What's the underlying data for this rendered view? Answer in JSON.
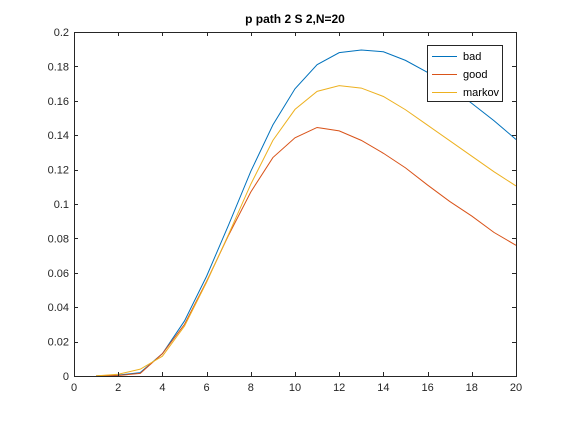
{
  "chart_data": {
    "type": "line",
    "title": "p path 2 S 2,N=20",
    "xlabel": "",
    "ylabel": "",
    "xlim": [
      0,
      20
    ],
    "ylim": [
      0,
      0.2
    ],
    "xticks": [
      0,
      2,
      4,
      6,
      8,
      10,
      12,
      14,
      16,
      18,
      20
    ],
    "yticks": [
      0,
      0.02,
      0.04,
      0.06,
      0.08,
      0.1,
      0.12,
      0.14,
      0.16,
      0.18,
      0.2
    ],
    "xtick_labels": [
      "0",
      "2",
      "4",
      "6",
      "8",
      "10",
      "12",
      "14",
      "16",
      "18",
      "20"
    ],
    "ytick_labels": [
      "0",
      "0.02",
      "0.04",
      "0.06",
      "0.08",
      "0.1",
      "0.12",
      "0.14",
      "0.16",
      "0.18",
      "0.2"
    ],
    "grid": false,
    "legend_position": "top-right",
    "x": [
      1,
      2,
      3,
      4,
      5,
      6,
      7,
      8,
      9,
      10,
      11,
      12,
      13,
      14,
      15,
      16,
      17,
      18,
      19,
      20
    ],
    "series": [
      {
        "name": "bad",
        "color": "#0072BD",
        "values": [
          0.0001,
          0.0005,
          0.002,
          0.013,
          0.032,
          0.058,
          0.088,
          0.119,
          0.146,
          0.167,
          0.181,
          0.188,
          0.1895,
          0.1885,
          0.1835,
          0.1765,
          0.1685,
          0.1585,
          0.1485,
          0.1375
        ]
      },
      {
        "name": "good",
        "color": "#D95319",
        "values": [
          0.0001,
          0.0003,
          0.0015,
          0.013,
          0.03,
          0.055,
          0.082,
          0.107,
          0.127,
          0.1385,
          0.1445,
          0.1425,
          0.137,
          0.1295,
          0.121,
          0.111,
          0.1015,
          0.093,
          0.0835,
          0.076
        ]
      },
      {
        "name": "markov",
        "color": "#EDB120",
        "values": [
          0.0001,
          0.001,
          0.004,
          0.0115,
          0.029,
          0.0545,
          0.0825,
          0.1115,
          0.137,
          0.155,
          0.1655,
          0.1688,
          0.1674,
          0.1625,
          0.1548,
          0.1458,
          0.1368,
          0.1278,
          0.1188,
          0.1105
        ]
      }
    ]
  }
}
